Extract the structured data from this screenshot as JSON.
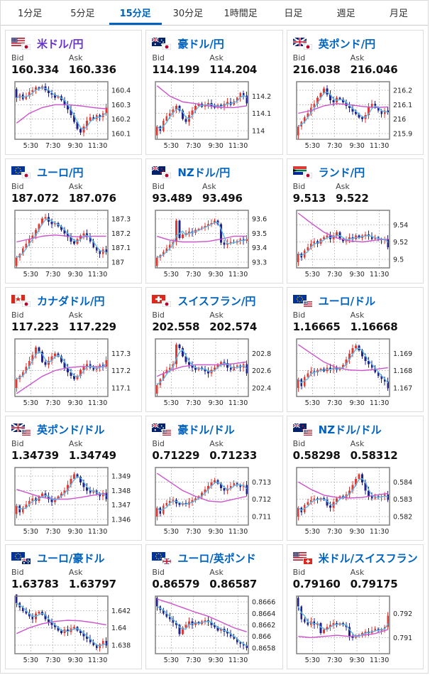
{
  "tabs": {
    "items": [
      {
        "label": "1分足",
        "active": false
      },
      {
        "label": "5分足",
        "active": false
      },
      {
        "label": "15分足",
        "active": true
      },
      {
        "label": "30分足",
        "active": false
      },
      {
        "label": "1時間足",
        "active": false
      },
      {
        "label": "日足",
        "active": false
      },
      {
        "label": "週足",
        "active": false
      },
      {
        "label": "月足",
        "active": false
      }
    ]
  },
  "labels": {
    "bid": "Bid",
    "ask": "Ask"
  },
  "colors": {
    "up_candle": "#e23a32",
    "down_candle": "#20218a",
    "ma_fast": "#5fb4e5",
    "ma_slow": "#cc52cc",
    "link": "#0063bf",
    "visited_link": "#6633cc",
    "tab_active": "#0063bf",
    "grid_line": "#b3b3b3",
    "chart_border": "#808080"
  },
  "cards": [
    {
      "pair": "米ドル/円",
      "base_flag": "us",
      "quote_flag": "jp",
      "visited": true,
      "bid": "160.334",
      "ask": "160.336",
      "chart": {
        "type": "candlestick",
        "yticks": [
          "160.4",
          "160.3",
          "160.2",
          "160.1"
        ],
        "xticks": [
          "5:30",
          "7:30",
          "9:30",
          "11:30"
        ],
        "closes": [
          0.72,
          0.78,
          0.7,
          0.75,
          0.82,
          0.85,
          0.9,
          0.88,
          0.92,
          0.85,
          0.8,
          0.78,
          0.72,
          0.75,
          0.68,
          0.6,
          0.52,
          0.42,
          0.3,
          0.18,
          0.12,
          0.22,
          0.32,
          0.38,
          0.35,
          0.42,
          0.38,
          0.45,
          0.55
        ],
        "ma_slow": [
          0.28,
          0.45,
          0.55,
          0.6,
          0.6,
          0.58,
          0.55,
          0.53
        ]
      }
    },
    {
      "pair": "豪ドル/円",
      "base_flag": "au",
      "quote_flag": "jp",
      "visited": false,
      "bid": "114.199",
      "ask": "114.204",
      "chart": {
        "type": "candlestick",
        "yticks": [
          "114.2",
          "114.1",
          "114"
        ],
        "xticks": [
          "5:30",
          "7:30",
          "9:30",
          "11:30"
        ],
        "closes": [
          0.22,
          0.15,
          0.32,
          0.4,
          0.45,
          0.52,
          0.58,
          0.5,
          0.35,
          0.3,
          0.42,
          0.5,
          0.58,
          0.62,
          0.57,
          0.6,
          0.63,
          0.58,
          0.55,
          0.6,
          0.57,
          0.62,
          0.65,
          0.6,
          0.66,
          0.72,
          0.8,
          0.76,
          0.62
        ],
        "ma_slow": [
          0.93,
          0.75,
          0.65,
          0.62,
          0.58,
          0.55,
          0.55,
          0.58
        ]
      }
    },
    {
      "pair": "英ポンド/円",
      "base_flag": "gb",
      "quote_flag": "jp",
      "visited": false,
      "bid": "216.038",
      "ask": "216.046",
      "chart": {
        "type": "candlestick",
        "yticks": [
          "216.2",
          "216.1",
          "216",
          "215.9"
        ],
        "xticks": [
          "5:30",
          "7:30",
          "9:30",
          "11:30"
        ],
        "closes": [
          0.22,
          0.3,
          0.38,
          0.45,
          0.55,
          0.62,
          0.72,
          0.8,
          0.88,
          0.78,
          0.68,
          0.64,
          0.72,
          0.7,
          0.64,
          0.58,
          0.54,
          0.48,
          0.44,
          0.38,
          0.35,
          0.42,
          0.56,
          0.62,
          0.55,
          0.5,
          0.44,
          0.5,
          0.47
        ],
        "ma_slow": [
          0.45,
          0.5,
          0.58,
          0.62,
          0.6,
          0.57,
          0.55,
          0.56
        ]
      }
    },
    {
      "pair": "ユーロ/円",
      "base_flag": "eu",
      "quote_flag": "jp",
      "visited": false,
      "bid": "187.072",
      "ask": "187.076",
      "chart": {
        "type": "candlestick",
        "yticks": [
          "187.3",
          "187.2",
          "187.1",
          "187"
        ],
        "xticks": [
          "5:30",
          "7:30",
          "9:30",
          "11:30"
        ],
        "closes": [
          0.18,
          0.24,
          0.34,
          0.42,
          0.5,
          0.56,
          0.66,
          0.76,
          0.86,
          0.88,
          0.8,
          0.76,
          0.78,
          0.72,
          0.66,
          0.6,
          0.54,
          0.46,
          0.42,
          0.5,
          0.56,
          0.6,
          0.54,
          0.46,
          0.36,
          0.3,
          0.24,
          0.32,
          0.27
        ],
        "ma_slow": [
          0.45,
          0.5,
          0.55,
          0.57,
          0.55,
          0.54,
          0.55,
          0.55
        ]
      }
    },
    {
      "pair": "NZドル/円",
      "base_flag": "nz",
      "quote_flag": "jp",
      "visited": false,
      "bid": "93.489",
      "ask": "93.496",
      "chart": {
        "type": "candlestick",
        "yticks": [
          "93.6",
          "93.5",
          "93.4",
          "93.3"
        ],
        "xticks": [
          "5:30",
          "7:30",
          "9:30",
          "11:30"
        ],
        "closes": [
          0.18,
          0.22,
          0.28,
          0.34,
          0.4,
          0.45,
          0.82,
          0.52,
          0.58,
          0.6,
          0.63,
          0.61,
          0.66,
          0.68,
          0.7,
          0.73,
          0.76,
          0.78,
          0.82,
          0.76,
          0.44,
          0.4,
          0.43,
          0.45,
          0.44,
          0.47,
          0.5,
          0.47,
          0.5
        ],
        "ma_slow": [
          0.55,
          0.48,
          0.45,
          0.45,
          0.46,
          0.5,
          0.55,
          0.55
        ]
      }
    },
    {
      "pair": "ランド/円",
      "base_flag": "za",
      "quote_flag": "jp",
      "visited": false,
      "bid": "9.513",
      "ask": "9.522",
      "chart": {
        "type": "candlestick",
        "yticks": [
          "9.54",
          "9.52",
          "9.5"
        ],
        "xticks": [
          "5:30",
          "7:30",
          "9:30",
          "11:30"
        ],
        "closes": [
          0.25,
          0.18,
          0.3,
          0.36,
          0.42,
          0.46,
          0.42,
          0.5,
          0.53,
          0.56,
          0.5,
          0.56,
          0.62,
          0.5,
          0.46,
          0.5,
          0.53,
          0.5,
          0.56,
          0.52,
          0.56,
          0.58,
          0.55,
          0.5,
          0.53,
          0.5,
          0.48,
          0.5,
          0.36
        ],
        "ma_slow": [
          0.95,
          0.78,
          0.62,
          0.52,
          0.47,
          0.45,
          0.48,
          0.5
        ]
      }
    },
    {
      "pair": "カナダドル/円",
      "base_flag": "ca",
      "quote_flag": "jp",
      "visited": false,
      "bid": "117.223",
      "ask": "117.229",
      "chart": {
        "type": "candlestick",
        "yticks": [
          "117.3",
          "117.2",
          "117.1"
        ],
        "xticks": [
          "5:30",
          "7:30",
          "9:30",
          "11:30"
        ],
        "closes": [
          0.3,
          0.36,
          0.42,
          0.52,
          0.62,
          0.72,
          0.85,
          0.78,
          0.6,
          0.55,
          0.62,
          0.7,
          0.75,
          0.7,
          0.6,
          0.5,
          0.42,
          0.36,
          0.3,
          0.36,
          0.46,
          0.52,
          0.56,
          0.5,
          0.46,
          0.5,
          0.55,
          0.52,
          0.63
        ],
        "ma_slow": [
          0.05,
          0.2,
          0.35,
          0.45,
          0.5,
          0.52,
          0.52,
          0.52
        ]
      }
    },
    {
      "pair": "スイスフラン/円",
      "base_flag": "ch",
      "quote_flag": "jp",
      "visited": false,
      "bid": "202.558",
      "ask": "202.574",
      "chart": {
        "type": "candlestick",
        "yticks": [
          "202.8",
          "202.6",
          "202.4"
        ],
        "xticks": [
          "5:30",
          "7:30",
          "9:30",
          "11:30"
        ],
        "closes": [
          0.2,
          0.3,
          0.4,
          0.46,
          0.5,
          0.56,
          0.9,
          0.84,
          0.7,
          0.6,
          0.55,
          0.5,
          0.46,
          0.5,
          0.48,
          0.44,
          0.4,
          0.46,
          0.5,
          0.56,
          0.6,
          0.58,
          0.5,
          0.46,
          0.52,
          0.54,
          0.5,
          0.56,
          0.4
        ],
        "ma_slow": [
          0.35,
          0.45,
          0.52,
          0.55,
          0.55,
          0.55,
          0.57,
          0.6
        ]
      }
    },
    {
      "pair": "ユーロ/ドル",
      "base_flag": "eu",
      "quote_flag": "us",
      "visited": false,
      "bid": "1.16665",
      "ask": "1.16668",
      "chart": {
        "type": "candlestick",
        "yticks": [
          "1.169",
          "1.168",
          "1.167"
        ],
        "xticks": [
          "5:30",
          "7:30",
          "9:30",
          "11:30"
        ],
        "closes": [
          0.3,
          0.18,
          0.34,
          0.4,
          0.44,
          0.42,
          0.46,
          0.48,
          0.44,
          0.5,
          0.47,
          0.5,
          0.46,
          0.5,
          0.55,
          0.64,
          0.74,
          0.84,
          0.88,
          0.8,
          0.7,
          0.62,
          0.56,
          0.5,
          0.42,
          0.36,
          0.3,
          0.26,
          0.14
        ],
        "ma_slow": [
          0.9,
          0.75,
          0.6,
          0.5,
          0.46,
          0.45,
          0.47,
          0.5
        ]
      }
    },
    {
      "pair": "英ポンド/ドル",
      "base_flag": "gb",
      "quote_flag": "us",
      "visited": false,
      "bid": "1.34739",
      "ask": "1.34749",
      "chart": {
        "type": "candlestick",
        "yticks": [
          "1.349",
          "1.348",
          "1.347",
          "1.346"
        ],
        "xticks": [
          "5:30",
          "7:30",
          "9:30",
          "11:30"
        ],
        "closes": [
          0.34,
          0.22,
          0.3,
          0.36,
          0.42,
          0.46,
          0.42,
          0.5,
          0.55,
          0.5,
          0.45,
          0.4,
          0.46,
          0.5,
          0.55,
          0.6,
          0.7,
          0.8,
          0.88,
          0.84,
          0.74,
          0.66,
          0.6,
          0.56,
          0.6,
          0.55,
          0.5,
          0.56,
          0.45
        ],
        "ma_slow": [
          0.62,
          0.55,
          0.48,
          0.45,
          0.45,
          0.48,
          0.52,
          0.55
        ]
      }
    },
    {
      "pair": "豪ドル/ドル",
      "base_flag": "au",
      "quote_flag": "us",
      "visited": false,
      "bid": "0.71229",
      "ask": "0.71233",
      "chart": {
        "type": "candlestick",
        "yticks": [
          "0.713",
          "0.712",
          "0.711"
        ],
        "xticks": [
          "5:30",
          "7:30",
          "9:30",
          "11:30"
        ],
        "closes": [
          0.3,
          0.2,
          0.34,
          0.38,
          0.42,
          0.44,
          0.38,
          0.35,
          0.38,
          0.36,
          0.4,
          0.43,
          0.46,
          0.5,
          0.56,
          0.62,
          0.68,
          0.74,
          0.78,
          0.72,
          0.64,
          0.6,
          0.63,
          0.68,
          0.73,
          0.7,
          0.66,
          0.7,
          0.54
        ],
        "ma_slow": [
          0.9,
          0.75,
          0.6,
          0.5,
          0.42,
          0.4,
          0.45,
          0.5
        ]
      }
    },
    {
      "pair": "NZドル/ドル",
      "base_flag": "nz",
      "quote_flag": "us",
      "visited": false,
      "bid": "0.58298",
      "ask": "0.58312",
      "chart": {
        "type": "candlestick",
        "yticks": [
          "0.584",
          "0.583",
          "0.582"
        ],
        "xticks": [
          "5:30",
          "7:30",
          "9:30",
          "11:30"
        ],
        "closes": [
          0.3,
          0.22,
          0.35,
          0.4,
          0.43,
          0.46,
          0.44,
          0.47,
          0.44,
          0.34,
          0.3,
          0.4,
          0.46,
          0.5,
          0.48,
          0.53,
          0.6,
          0.7,
          0.8,
          0.88,
          0.74,
          0.6,
          0.5,
          0.46,
          0.5,
          0.48,
          0.5,
          0.53,
          0.44
        ],
        "ma_slow": [
          0.75,
          0.62,
          0.52,
          0.48,
          0.47,
          0.48,
          0.52,
          0.55
        ]
      }
    },
    {
      "pair": "ユーロ/豪ドル",
      "base_flag": "eu",
      "quote_flag": "au",
      "visited": false,
      "bid": "1.63783",
      "ask": "1.63797",
      "chart": {
        "type": "candlestick",
        "yticks": [
          "1.642",
          "1.64",
          "1.638"
        ],
        "xticks": [
          "5:30",
          "7:30",
          "9:30",
          "11:30"
        ],
        "closes": [
          0.88,
          0.8,
          0.74,
          0.7,
          0.65,
          0.6,
          0.7,
          0.73,
          0.68,
          0.6,
          0.55,
          0.5,
          0.46,
          0.4,
          0.36,
          0.42,
          0.38,
          0.44,
          0.46,
          0.4,
          0.36,
          0.3,
          0.26,
          0.2,
          0.15,
          0.1,
          0.16,
          0.22,
          0.14
        ],
        "ma_slow": [
          0.35,
          0.45,
          0.52,
          0.56,
          0.58,
          0.57,
          0.54,
          0.5
        ]
      }
    },
    {
      "pair": "ユーロ/英ポンド",
      "base_flag": "eu",
      "quote_flag": "gb",
      "visited": false,
      "bid": "0.86579",
      "ask": "0.86587",
      "chart": {
        "type": "candlestick",
        "yticks": [
          "0.8666",
          "0.8664",
          "0.8662",
          "0.866",
          "0.8658"
        ],
        "xticks": [
          "5:30",
          "7:30",
          "9:30",
          "11:30"
        ],
        "closes": [
          0.82,
          0.76,
          0.7,
          0.64,
          0.6,
          0.54,
          0.5,
          0.34,
          0.45,
          0.5,
          0.56,
          0.5,
          0.55,
          0.52,
          0.56,
          0.58,
          0.55,
          0.5,
          0.46,
          0.4,
          0.43,
          0.38,
          0.35,
          0.3,
          0.26,
          0.2,
          0.17,
          0.14,
          0.1
        ],
        "ma_slow": [
          0.95,
          0.88,
          0.8,
          0.72,
          0.65,
          0.55,
          0.45,
          0.38
        ]
      }
    },
    {
      "pair": "米ドル/スイスフラン",
      "base_flag": "us",
      "quote_flag": "ch",
      "visited": false,
      "bid": "0.79160",
      "ask": "0.79175",
      "chart": {
        "type": "candlestick",
        "yticks": [
          "0.792",
          "0.791"
        ],
        "xticks": [
          "5:30",
          "7:30",
          "9:30",
          "11:30"
        ],
        "closes": [
          0.82,
          0.6,
          0.55,
          0.5,
          0.56,
          0.5,
          0.53,
          0.36,
          0.42,
          0.46,
          0.5,
          0.53,
          0.5,
          0.53,
          0.5,
          0.46,
          0.3,
          0.28,
          0.3,
          0.33,
          0.36,
          0.38,
          0.36,
          0.4,
          0.43,
          0.4,
          0.43,
          0.46,
          0.66
        ],
        "ma_slow": [
          0.3,
          0.28,
          0.3,
          0.32,
          0.3,
          0.32,
          0.35,
          0.42
        ]
      }
    }
  ]
}
